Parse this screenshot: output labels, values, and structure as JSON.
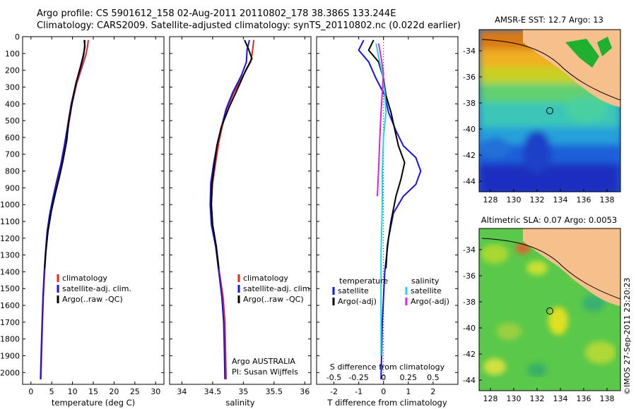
{
  "header": {
    "line1": "Argo profile: CS 5901612_158 02-Aug-2011 20110802_178 38.386S 133.244E",
    "line2": "Climatology: CARS2009. Satellite-adjusted climatology: synTS_20110802.nc (0.022d earlier)"
  },
  "colors": {
    "climatology": "#e8241e",
    "satellite": "#1414e6",
    "argo": "#000000",
    "sat_salinity": "#20d8e0",
    "argo_salinity": "#e020e0"
  },
  "chart_data": [
    {
      "type": "line",
      "xlabel": "temperature (deg C)",
      "xlim": [
        -2,
        32
      ],
      "xticks": [
        0,
        5,
        10,
        15,
        20,
        25,
        30
      ],
      "ylim": [
        2070,
        0
      ],
      "yticks": [
        0,
        100,
        200,
        300,
        400,
        500,
        600,
        700,
        800,
        900,
        1000,
        1100,
        1200,
        1300,
        1400,
        1500,
        1600,
        1700,
        1800,
        1900,
        2000
      ],
      "legend": [
        "climatology",
        "satellite-adj. clim.",
        "Argo(..raw -QC)"
      ],
      "series": [
        {
          "name": "climatology",
          "color": "#e8241e",
          "points": [
            [
              13.8,
              20
            ],
            [
              13.6,
              60
            ],
            [
              13.2,
              110
            ],
            [
              12.3,
              180
            ],
            [
              11,
              280
            ],
            [
              9.9,
              400
            ],
            [
              9.1,
              520
            ],
            [
              8.4,
              640
            ],
            [
              7.4,
              760
            ],
            [
              6.3,
              860
            ],
            [
              5.4,
              960
            ],
            [
              4.6,
              1060
            ],
            [
              4.0,
              1160
            ],
            [
              3.6,
              1280
            ],
            [
              3.3,
              1400
            ],
            [
              3.0,
              1550
            ],
            [
              2.8,
              1700
            ],
            [
              2.6,
              1850
            ],
            [
              2.4,
              2040
            ]
          ]
        },
        {
          "name": "satellite-adj. clim.",
          "color": "#1414e6",
          "points": [
            [
              13.0,
              20
            ],
            [
              12.9,
              60
            ],
            [
              12.7,
              110
            ],
            [
              12.0,
              180
            ],
            [
              10.8,
              280
            ],
            [
              9.7,
              400
            ],
            [
              8.9,
              520
            ],
            [
              8.1,
              640
            ],
            [
              7.2,
              760
            ],
            [
              6.2,
              860
            ],
            [
              5.3,
              960
            ],
            [
              4.5,
              1060
            ],
            [
              3.9,
              1160
            ],
            [
              3.5,
              1280
            ],
            [
              3.2,
              1400
            ],
            [
              2.9,
              1550
            ],
            [
              2.7,
              1700
            ],
            [
              2.5,
              1850
            ],
            [
              2.3,
              2040
            ]
          ]
        },
        {
          "name": "Argo(..raw -QC)",
          "color": "#000000",
          "points": [
            [
              12.8,
              20
            ],
            [
              13.0,
              60
            ],
            [
              12.6,
              110
            ],
            [
              12.0,
              170
            ],
            [
              10.9,
              270
            ],
            [
              10.0,
              380
            ],
            [
              9.1,
              500
            ],
            [
              8.6,
              620
            ],
            [
              7.7,
              740
            ],
            [
              6.9,
              830
            ],
            [
              5.9,
              930
            ],
            [
              4.9,
              1040
            ],
            [
              4.1,
              1160
            ],
            [
              3.6,
              1280
            ],
            [
              3.3,
              1380
            ]
          ]
        }
      ]
    },
    {
      "type": "line",
      "xlabel": "salinity",
      "xlim": [
        33.8,
        36.1
      ],
      "xticks": [
        34,
        34.5,
        35,
        35.5,
        36
      ],
      "ylim": [
        2070,
        0
      ],
      "legend": [
        "climatology",
        "satellite-adj. clim.",
        "Argo(..raw -QC)"
      ],
      "annotation": [
        "Argo AUSTRALIA",
        "PI: Susan Wijffels"
      ],
      "series": [
        {
          "name": "climatology",
          "color": "#e8241e",
          "points": [
            [
              35.17,
              20
            ],
            [
              35.15,
              80
            ],
            [
              35.12,
              150
            ],
            [
              35.0,
              230
            ],
            [
              34.85,
              330
            ],
            [
              34.73,
              430
            ],
            [
              34.66,
              530
            ],
            [
              34.6,
              630
            ],
            [
              34.55,
              750
            ],
            [
              34.5,
              870
            ],
            [
              34.48,
              1000
            ],
            [
              34.5,
              1120
            ],
            [
              34.56,
              1250
            ],
            [
              34.61,
              1400
            ],
            [
              34.67,
              1550
            ],
            [
              34.7,
              1700
            ],
            [
              34.71,
              1850
            ],
            [
              34.72,
              2040
            ]
          ]
        },
        {
          "name": "satellite-adj. clim.",
          "color": "#1414e6",
          "points": [
            [
              35.1,
              20
            ],
            [
              35.06,
              80
            ],
            [
              35.05,
              150
            ],
            [
              34.97,
              230
            ],
            [
              34.83,
              330
            ],
            [
              34.72,
              430
            ],
            [
              34.65,
              530
            ],
            [
              34.58,
              630
            ],
            [
              34.52,
              750
            ],
            [
              34.47,
              870
            ],
            [
              34.46,
              1000
            ],
            [
              34.48,
              1120
            ],
            [
              34.55,
              1250
            ],
            [
              34.6,
              1400
            ],
            [
              34.65,
              1550
            ],
            [
              34.68,
              1700
            ],
            [
              34.69,
              1850
            ],
            [
              34.7,
              2040
            ]
          ]
        },
        {
          "name": "Argo(..raw -QC)",
          "color": "#000000",
          "points": [
            [
              35.02,
              20
            ],
            [
              35.08,
              70
            ],
            [
              35.14,
              130
            ],
            [
              35.04,
              200
            ],
            [
              34.92,
              300
            ],
            [
              34.77,
              420
            ],
            [
              34.64,
              540
            ],
            [
              34.57,
              650
            ],
            [
              34.53,
              760
            ],
            [
              34.49,
              880
            ],
            [
              34.48,
              1000
            ],
            [
              34.5,
              1120
            ],
            [
              34.56,
              1250
            ],
            [
              34.6,
              1380
            ]
          ]
        }
      ]
    },
    {
      "type": "line",
      "xlabel": "T difference from climatology",
      "x2label": "S difference from climatology",
      "xlim": [
        -2.7,
        3.0
      ],
      "xticks": [
        -2,
        -1,
        0,
        1,
        2
      ],
      "s_ticks": [
        "-0.5",
        "-0.25",
        "0",
        "0.25",
        "0.5"
      ],
      "ylim": [
        2070,
        0
      ],
      "legend_t": {
        "title": "temperature",
        "items": [
          "satellite",
          "Argo(-adj)"
        ]
      },
      "legend_s": {
        "title": "salinity",
        "items": [
          "satellite",
          "Argo(-adj)"
        ]
      },
      "series": [
        {
          "name": "satellite",
          "color": "#1414e6",
          "points": [
            [
              -0.8,
              20
            ],
            [
              -1.0,
              80
            ],
            [
              -0.6,
              150
            ],
            [
              -0.3,
              250
            ],
            [
              0.05,
              350
            ],
            [
              0.2,
              450
            ],
            [
              0.5,
              560
            ],
            [
              0.8,
              650
            ],
            [
              1.3,
              720
            ],
            [
              1.5,
              800
            ],
            [
              1.3,
              880
            ],
            [
              0.8,
              950
            ],
            [
              0.4,
              1050
            ],
            [
              0.2,
              1200
            ],
            [
              0.05,
              1400
            ],
            [
              -0.05,
              1700
            ],
            [
              -0.1,
              2040
            ]
          ]
        },
        {
          "name": "Argo(-adj)",
          "color": "#000000",
          "points": [
            [
              -0.4,
              20
            ],
            [
              -0.6,
              80
            ],
            [
              -0.2,
              150
            ],
            [
              0.0,
              250
            ],
            [
              0.1,
              350
            ],
            [
              0.3,
              450
            ],
            [
              0.45,
              550
            ],
            [
              0.6,
              650
            ],
            [
              0.85,
              750
            ],
            [
              0.7,
              850
            ],
            [
              0.5,
              950
            ],
            [
              0.3,
              1100
            ],
            [
              0.15,
              1250
            ],
            [
              0.1,
              1380
            ]
          ]
        },
        {
          "name": "satellite",
          "color": "#20d8e0",
          "points": [
            [
              -0.3,
              40
            ],
            [
              -0.2,
              120
            ],
            [
              -0.05,
              220
            ],
            [
              0.05,
              330
            ],
            [
              0.1,
              450
            ],
            [
              0.0,
              600
            ],
            [
              -0.05,
              800
            ],
            [
              -0.05,
              1000
            ],
            [
              -0.1,
              1300
            ],
            [
              -0.1,
              1600
            ],
            [
              -0.1,
              1900
            ]
          ]
        },
        {
          "name": "Argo(-adj)",
          "color": "#e020e0",
          "points": [
            [
              -0.2,
              40
            ],
            [
              -0.1,
              120
            ],
            [
              0.0,
              220
            ],
            [
              -0.05,
              330
            ],
            [
              -0.1,
              450
            ],
            [
              -0.15,
              600
            ],
            [
              -0.2,
              800
            ],
            [
              -0.25,
              950
            ]
          ]
        }
      ]
    }
  ],
  "maps": [
    {
      "title": "AMSR-E SST: 12.7 Argo: 13",
      "xticks": [
        "128",
        "130",
        "132",
        "134",
        "136",
        "138"
      ],
      "yticks": [
        "-34",
        "-36",
        "-38",
        "-40",
        "-42",
        "-44"
      ],
      "colormap": "sst"
    },
    {
      "title": "Altimetric SLA: 0.07 Argo: 0.0053",
      "xticks": [
        "128",
        "130",
        "132",
        "134",
        "136",
        "138"
      ],
      "yticks": [
        "-34",
        "-36",
        "-38",
        "-40",
        "-42",
        "-44"
      ],
      "colormap": "sla"
    }
  ],
  "credit": "©IMOS 27-Sep-2011 23:20:23"
}
